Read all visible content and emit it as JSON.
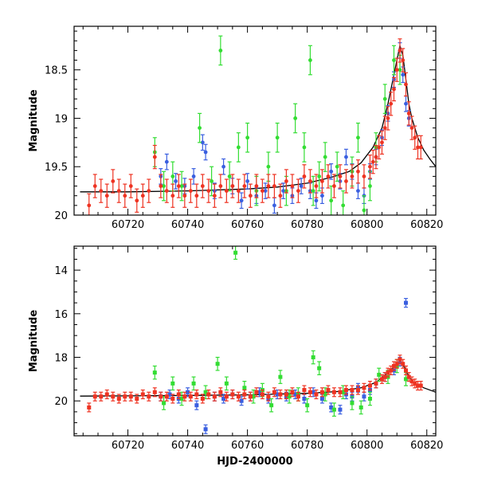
{
  "chart_data": [
    {
      "type": "scatter",
      "panel": "top",
      "title": "",
      "xlabel": "",
      "ylabel": "Magnitude",
      "xlim": [
        60702,
        60823
      ],
      "ylim": [
        20.0,
        18.05
      ],
      "y_inverted": true,
      "xticks": [
        60720,
        60740,
        60760,
        60780,
        60800,
        60820
      ],
      "xtick_labels": [
        "60720",
        "60740",
        "60760",
        "60780",
        "60800",
        "60820"
      ],
      "yticks": [
        18.5,
        19,
        19.5,
        20
      ],
      "ytick_labels": [
        "18.5",
        "19",
        "19.5",
        "20"
      ],
      "grid": false,
      "legend": "none",
      "series": [
        {
          "color": "#3a5fe0",
          "marker": "circle",
          "err": 0.08,
          "x": [
            60731,
            60733,
            60736,
            60739,
            60742,
            60745,
            60746,
            60749,
            60752,
            60755,
            60758,
            60760,
            60763,
            60766,
            60769,
            60772,
            60775,
            60778,
            60781,
            60783,
            60785,
            60788,
            60791,
            60793,
            60795,
            60797,
            60799,
            60801,
            60803,
            60805,
            60807,
            60809,
            60811,
            60812,
            60813,
            60814
          ],
          "y": [
            19.6,
            19.45,
            19.65,
            19.7,
            19.6,
            19.25,
            19.35,
            19.75,
            19.5,
            19.7,
            19.85,
            19.65,
            19.8,
            19.75,
            19.9,
            19.75,
            19.8,
            19.7,
            19.75,
            19.85,
            19.8,
            19.55,
            19.65,
            19.4,
            19.55,
            19.75,
            19.8,
            19.55,
            19.4,
            19.2,
            18.95,
            18.6,
            18.3,
            18.55,
            18.85,
            19.0
          ]
        },
        {
          "color": "#33dd33",
          "marker": "circle",
          "err": 0.15,
          "x": [
            60729,
            60732,
            60735,
            60738,
            60744,
            60748,
            60751,
            60754,
            60757,
            60760,
            60763,
            60767,
            60770,
            60773,
            60776,
            60779,
            60781,
            60782,
            60784,
            60786,
            60788,
            60790,
            60792,
            60795,
            60797,
            60799,
            60801,
            60803,
            60806,
            60809,
            60811
          ],
          "y": [
            19.35,
            19.7,
            19.6,
            19.7,
            19.1,
            19.65,
            18.3,
            19.6,
            19.3,
            19.2,
            19.75,
            19.5,
            19.2,
            19.75,
            19.0,
            19.3,
            18.4,
            19.75,
            19.6,
            19.4,
            19.85,
            19.5,
            19.9,
            19.55,
            19.2,
            19.95,
            19.7,
            19.3,
            18.8,
            18.4,
            18.5
          ]
        },
        {
          "color": "#ee3322",
          "marker": "circle",
          "err": 0.12,
          "x": [
            60707,
            60709,
            60711,
            60713,
            60715,
            60717,
            60719,
            60721,
            60723,
            60725,
            60727,
            60729,
            60731,
            60733,
            60735,
            60737,
            60739,
            60741,
            60743,
            60745,
            60747,
            60749,
            60751,
            60753,
            60755,
            60757,
            60759,
            60761,
            60763,
            60765,
            60767,
            60769,
            60771,
            60773,
            60775,
            60777,
            60779,
            60781,
            60783,
            60785,
            60787,
            60789,
            60791,
            60793,
            60795,
            60797,
            60799,
            60801,
            60802,
            60803,
            60804,
            60805,
            60806,
            60807,
            60808,
            60809,
            60810,
            60811,
            60812,
            60813,
            60814,
            60815,
            60816,
            60817,
            60818
          ],
          "y": [
            19.9,
            19.7,
            19.75,
            19.8,
            19.65,
            19.75,
            19.8,
            19.7,
            19.85,
            19.8,
            19.75,
            19.4,
            19.7,
            19.75,
            19.8,
            19.7,
            19.8,
            19.75,
            19.8,
            19.7,
            19.75,
            19.8,
            19.7,
            19.75,
            19.7,
            19.75,
            19.7,
            19.8,
            19.7,
            19.75,
            19.7,
            19.7,
            19.8,
            19.65,
            19.7,
            19.75,
            19.6,
            19.65,
            19.7,
            19.65,
            19.6,
            19.7,
            19.6,
            19.65,
            19.6,
            19.55,
            19.6,
            19.5,
            19.45,
            19.4,
            19.3,
            19.25,
            19.1,
            19.0,
            18.85,
            18.7,
            18.5,
            18.3,
            18.4,
            18.65,
            18.95,
            19.1,
            19.2,
            19.3,
            19.3
          ]
        }
      ],
      "model_curve": {
        "x": [
          60704,
          60720,
          60740,
          60760,
          60770,
          60780,
          60788,
          60794,
          60798,
          60802,
          60805,
          60807,
          60809,
          60810,
          60811,
          60812,
          60813,
          60814,
          60815,
          60817,
          60819,
          60821,
          60823
        ],
        "y": [
          19.76,
          19.76,
          19.75,
          19.73,
          19.71,
          19.67,
          19.61,
          19.55,
          19.46,
          19.3,
          19.1,
          18.85,
          18.55,
          18.4,
          18.25,
          18.35,
          18.6,
          18.85,
          19.0,
          19.2,
          19.33,
          19.42,
          19.5
        ]
      }
    },
    {
      "type": "scatter",
      "panel": "bottom",
      "title": "",
      "xlabel": "HJD-2400000",
      "ylabel": "Magnitude",
      "xlim": [
        60702,
        60823
      ],
      "ylim": [
        21.6,
        12.9
      ],
      "y_inverted": true,
      "xticks": [
        60720,
        60740,
        60760,
        60780,
        60800,
        60820
      ],
      "xtick_labels": [
        "60720",
        "60740",
        "60760",
        "60780",
        "60800",
        "60820"
      ],
      "yticks": [
        14,
        16,
        18,
        20
      ],
      "ytick_labels": [
        "14",
        "16",
        "18",
        "20"
      ],
      "grid": false,
      "legend": "none",
      "series": [
        {
          "color": "#3a5fe0",
          "marker": "square",
          "err": 0.2,
          "x": [
            60731,
            60734,
            60737,
            60740,
            60743,
            60746,
            60749,
            60752,
            60755,
            60758,
            60761,
            60764,
            60767,
            60770,
            60773,
            60776,
            60779,
            60782,
            60785,
            60788,
            60791,
            60793,
            60795,
            60797,
            60799,
            60801,
            60803,
            60806,
            60809,
            60811,
            60813
          ],
          "y": [
            19.8,
            19.7,
            19.9,
            19.6,
            20.2,
            21.3,
            19.8,
            19.9,
            19.7,
            20.0,
            19.8,
            19.6,
            19.9,
            19.7,
            19.8,
            19.7,
            19.9,
            19.6,
            19.9,
            20.3,
            20.4,
            19.7,
            19.8,
            19.4,
            19.8,
            19.5,
            19.2,
            18.9,
            18.6,
            18.2,
            15.5
          ]
        },
        {
          "color": "#33dd33",
          "marker": "square",
          "err": 0.3,
          "x": [
            60729,
            60732,
            60735,
            60738,
            60742,
            60746,
            60750,
            60753,
            60756,
            60759,
            60762,
            60765,
            60768,
            60771,
            60774,
            60777,
            60780,
            60782,
            60784,
            60786,
            60789,
            60792,
            60795,
            60798,
            60801,
            60804,
            60807,
            60810,
            60813
          ],
          "y": [
            18.7,
            20.1,
            19.2,
            19.9,
            19.2,
            19.6,
            18.3,
            19.2,
            13.2,
            19.4,
            19.8,
            19.5,
            20.2,
            18.9,
            19.8,
            19.7,
            20.2,
            18.0,
            18.5,
            19.7,
            20.4,
            19.6,
            20.1,
            20.3,
            19.9,
            18.8,
            18.9,
            18.4,
            19.0
          ]
        },
        {
          "color": "#ee3322",
          "marker": "square",
          "err": 0.2,
          "x": [
            60707,
            60709,
            60711,
            60713,
            60715,
            60717,
            60719,
            60721,
            60723,
            60725,
            60727,
            60729,
            60731,
            60733,
            60735,
            60737,
            60739,
            60741,
            60743,
            60745,
            60747,
            60749,
            60751,
            60753,
            60755,
            60757,
            60759,
            60761,
            60763,
            60765,
            60767,
            60769,
            60771,
            60773,
            60775,
            60777,
            60779,
            60781,
            60783,
            60785,
            60787,
            60789,
            60791,
            60793,
            60795,
            60797,
            60799,
            60801,
            60803,
            60805,
            60806,
            60807,
            60808,
            60809,
            60810,
            60811,
            60812,
            60813,
            60814,
            60815,
            60816,
            60817,
            60818
          ],
          "y": [
            20.3,
            19.8,
            19.8,
            19.7,
            19.8,
            19.9,
            19.8,
            19.8,
            19.9,
            19.7,
            19.8,
            19.6,
            19.8,
            19.8,
            19.9,
            19.7,
            19.8,
            19.8,
            19.7,
            19.9,
            19.7,
            19.8,
            19.6,
            19.8,
            19.7,
            19.8,
            19.7,
            19.8,
            19.6,
            19.7,
            19.8,
            19.6,
            19.7,
            19.7,
            19.6,
            19.8,
            19.5,
            19.6,
            19.7,
            19.6,
            19.5,
            19.6,
            19.6,
            19.5,
            19.5,
            19.5,
            19.4,
            19.3,
            19.2,
            19.0,
            18.9,
            18.7,
            18.6,
            18.4,
            18.3,
            18.1,
            18.3,
            18.6,
            18.9,
            19.1,
            19.2,
            19.3,
            19.3
          ]
        }
      ],
      "model_curve": {
        "x": [
          60704,
          60720,
          60740,
          60760,
          60780,
          60790,
          60798,
          60803,
          60807,
          60810,
          60811,
          60812,
          60814,
          60816,
          60819,
          60823
        ],
        "y": [
          19.78,
          19.77,
          19.75,
          19.72,
          19.65,
          19.57,
          19.4,
          19.15,
          18.7,
          18.3,
          18.15,
          18.3,
          18.9,
          19.2,
          19.4,
          19.6
        ]
      }
    }
  ]
}
